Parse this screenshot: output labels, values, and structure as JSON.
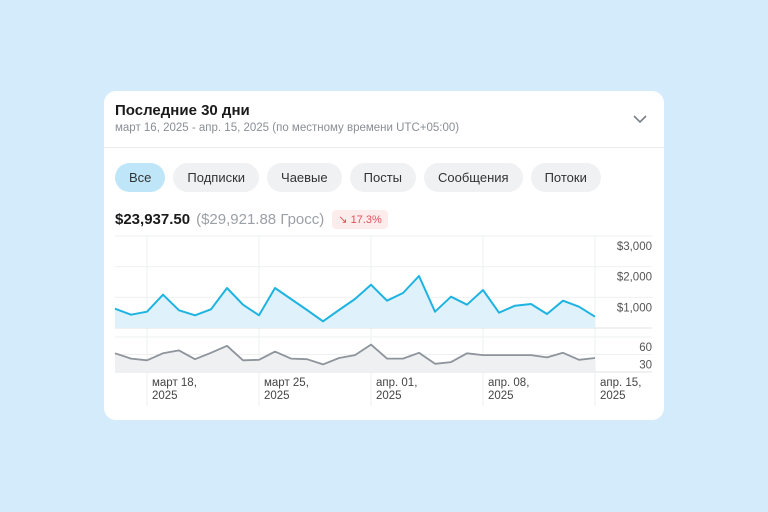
{
  "header": {
    "title": "Последние 30 дни",
    "subtitle": "март 16, 2025 - апр. 15, 2025 (по местному времени UTC+05:00)",
    "toggle_icon": "chevron-down-icon"
  },
  "filters": [
    {
      "label": "Все",
      "active": true
    },
    {
      "label": "Подписки"
    },
    {
      "label": "Чаевые"
    },
    {
      "label": "Посты"
    },
    {
      "label": "Сообщения"
    },
    {
      "label": "Потоки"
    }
  ],
  "summary": {
    "net": "$23,937.50",
    "gross": "($29,921.88 Гросс)",
    "change": "17.3%",
    "change_icon": "arrow-down-right-icon",
    "change_color": "#e0525a"
  },
  "chart_data": [
    {
      "type": "area",
      "color": "#1fb3e0",
      "ylim": [
        0,
        3000
      ],
      "y_ticks": [
        "$3,000",
        "$2,000",
        "$1,000"
      ],
      "y_tick_values": [
        3000,
        2000,
        1000
      ],
      "x_ticks": [
        {
          "l1": "март 18,",
          "l2": "2025"
        },
        {
          "l1": "март 25,",
          "l2": "2025"
        },
        {
          "l1": "апр. 01,",
          "l2": "2025"
        },
        {
          "l1": "апр. 08,",
          "l2": "2025"
        },
        {
          "l1": "апр. 15,",
          "l2": "2025"
        }
      ],
      "x_range": [
        "2025-03-16",
        "2025-04-15"
      ],
      "values": [
        630,
        435,
        533,
        1087,
        576,
        413,
        609,
        1304,
        761,
        413,
        1304,
        946,
        587,
        217,
        587,
        946,
        1413,
        891,
        1141,
        1696,
        533,
        1022,
        761,
        1239,
        500,
        728,
        783,
        457,
        891,
        696,
        370
      ]
    },
    {
      "type": "area",
      "color": "#8e949b",
      "ylim": [
        0,
        60
      ],
      "y_ticks": [
        "60",
        "30"
      ],
      "y_tick_values": [
        60,
        30
      ],
      "values": [
        32,
        23,
        20,
        32,
        37,
        22,
        33,
        45,
        20,
        21,
        35,
        23,
        22,
        13,
        24,
        29,
        47,
        23,
        23,
        33,
        14,
        17,
        32,
        29,
        29,
        29,
        29,
        25,
        33,
        21,
        24
      ]
    }
  ]
}
